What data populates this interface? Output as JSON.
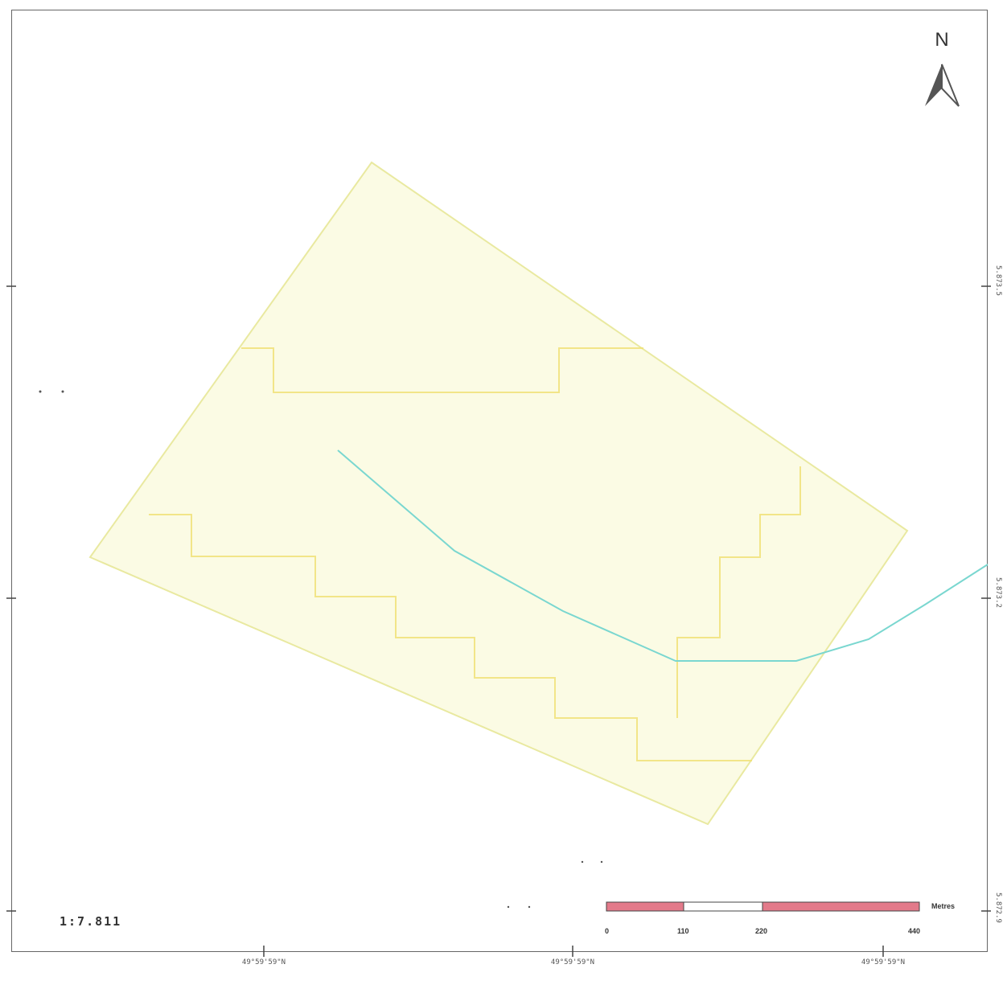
{
  "header": {
    "title": ""
  },
  "scale_ratio": "1:7.811",
  "scale_bar": {
    "unit": "Metres",
    "ticks": [
      "0",
      "110",
      "220",
      "440"
    ],
    "fill_color": "#e37a8a",
    "mid_color": "#ffffff"
  },
  "north_arrow": {
    "label": "N"
  },
  "grid": {
    "x_labels": [
      "49°59'59\"N",
      "49°59'59\"N",
      "49°59'59\"N"
    ],
    "y_labels": [
      "5.873.5",
      "5.873.2",
      "5.872.9"
    ]
  },
  "colors": {
    "parcel_fill": "#fbfbe4",
    "parcel_outline": "#e9e9a0",
    "inner_lines": "#f0e070",
    "river": "#7ad7d0"
  }
}
